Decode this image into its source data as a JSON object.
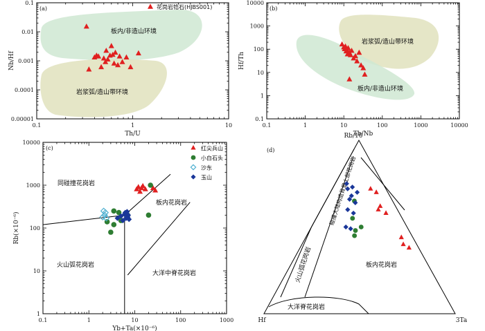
{
  "chart_data": [
    {
      "panel_label": "(a)",
      "type": "scatter",
      "xscale": "log",
      "yscale": "log",
      "xlim": [
        0.1,
        10
      ],
      "ylim": [
        1e-05,
        0.1
      ],
      "xlabel": "Th/U",
      "ylabel": "Nb/Hf",
      "xticks": [
        "0.1",
        "1",
        "10"
      ],
      "yticks": [
        "0.00001",
        "0.0001",
        "0.001",
        "0.01",
        "0.1"
      ],
      "legend": {
        "position": "top-right",
        "entries": [
          "花岗岩锆石(HJBS001)"
        ]
      },
      "fields": [
        {
          "label": "板内/非造山环境",
          "color": "#cfe8d2"
        },
        {
          "label": "岩浆弧/造山带环境",
          "color": "#e0e2bd"
        }
      ],
      "series": [
        {
          "name": "花岗岩锆石(HJBS001)",
          "color": "#e02020",
          "marker": "triangle",
          "points": [
            [
              0.33,
              0.015
            ],
            [
              0.35,
              0.0005
            ],
            [
              0.4,
              0.0013
            ],
            [
              0.42,
              0.0015
            ],
            [
              0.44,
              0.0014
            ],
            [
              0.47,
              0.0006
            ],
            [
              0.5,
              0.0012
            ],
            [
              0.52,
              0.0009
            ],
            [
              0.53,
              0.0022
            ],
            [
              0.55,
              0.0011
            ],
            [
              0.58,
              0.0015
            ],
            [
              0.6,
              0.0032
            ],
            [
              0.62,
              0.0016
            ],
            [
              0.64,
              0.0008
            ],
            [
              0.66,
              0.0019
            ],
            [
              0.7,
              0.0007
            ],
            [
              0.73,
              0.0014
            ],
            [
              0.78,
              0.0009
            ],
            [
              0.86,
              0.0013
            ],
            [
              0.95,
              0.0006
            ],
            [
              1.15,
              0.0018
            ]
          ]
        }
      ]
    },
    {
      "panel_label": "(b)",
      "type": "scatter",
      "xscale": "log",
      "yscale": "log",
      "xlim": [
        0.1,
        10000
      ],
      "ylim": [
        0.1,
        10000
      ],
      "xlabel": "Th/Nb",
      "ylabel": "Hf/Th",
      "xticks": [
        "0.1",
        "1",
        "10",
        "100",
        "1000",
        "10000"
      ],
      "yticks": [
        "0.1",
        "1",
        "10",
        "100",
        "1000",
        "10000"
      ],
      "fields": [
        {
          "label": "岩浆弧/造山带环境",
          "color": "#e0e2bd"
        },
        {
          "label": "板内/非造山环境",
          "color": "#cfe8d2"
        }
      ],
      "series": [
        {
          "name": "花岗岩锆石(HJBS001)",
          "color": "#e02020",
          "marker": "triangle",
          "points": [
            [
              9,
              160
            ],
            [
              10,
              120
            ],
            [
              10.5,
              100
            ],
            [
              11,
              130
            ],
            [
              11.5,
              80
            ],
            [
              12,
              90
            ],
            [
              12.5,
              60
            ],
            [
              13,
              110
            ],
            [
              14,
              70
            ],
            [
              15,
              55
            ],
            [
              16,
              85
            ],
            [
              18,
              40
            ],
            [
              20,
              50
            ],
            [
              22,
              30
            ],
            [
              25,
              70
            ],
            [
              28,
              20
            ],
            [
              32,
              15
            ],
            [
              35,
              8
            ],
            [
              14,
              5
            ]
          ]
        }
      ]
    },
    {
      "panel_label": "(c)",
      "type": "scatter",
      "xscale": "log",
      "yscale": "log",
      "xlim": [
        0.1,
        1000
      ],
      "ylim": [
        1,
        10000
      ],
      "xlabel": "Yb+Ta(×10⁻⁶)",
      "ylabel": "Rb(×10⁻⁶)",
      "xticks": [
        "0.1",
        "1",
        "10",
        "100",
        "1000"
      ],
      "yticks": [
        "1",
        "10",
        "100",
        "1000",
        "10000"
      ],
      "legend": {
        "position": "top-right",
        "entries": [
          "红尖兵山",
          "小白石头",
          "沙东",
          "玉山"
        ]
      },
      "field_labels": [
        "同碰撞花岗岩",
        "板内花岗岩",
        "火山弧花岗岩",
        "大洋中脊花岗岩"
      ],
      "series": [
        {
          "name": "红尖兵山",
          "color": "#e02020",
          "marker": "triangle",
          "points": [
            [
              11,
              800
            ],
            [
              12,
              900
            ],
            [
              13,
              700
            ],
            [
              14,
              850
            ],
            [
              15,
              950
            ],
            [
              17,
              800
            ],
            [
              25,
              850
            ],
            [
              28,
              750
            ]
          ]
        },
        {
          "name": "小白石头",
          "color": "#2e7d32",
          "marker": "circle",
          "points": [
            [
              2.5,
              140
            ],
            [
              3,
              80
            ],
            [
              3.5,
              250
            ],
            [
              3.5,
              120
            ],
            [
              4.5,
              230
            ],
            [
              5,
              150
            ],
            [
              7,
              200
            ],
            [
              20,
              200
            ],
            [
              22,
              1000
            ]
          ]
        },
        {
          "name": "沙东",
          "color": "#4fb0d0",
          "marker": "diamond-open",
          "points": [
            [
              2,
              180
            ],
            [
              2.1,
              250
            ],
            [
              2.2,
              200
            ],
            [
              2.3,
              230
            ],
            [
              2.4,
              170
            ]
          ]
        },
        {
          "name": "玉山",
          "color": "#1a3799",
          "marker": "diamond",
          "points": [
            [
              4.2,
              170
            ],
            [
              5,
              190
            ],
            [
              5.5,
              150
            ],
            [
              6,
              210
            ],
            [
              6.2,
              230
            ],
            [
              6.5,
              170
            ],
            [
              6.8,
              240
            ],
            [
              7,
              180
            ],
            [
              7.2,
              200
            ],
            [
              7.5,
              160
            ]
          ]
        }
      ]
    },
    {
      "panel_label": "(d)",
      "type": "scatter",
      "projection": "ternary",
      "vertices": [
        "Rb/10",
        "Hf",
        "3Ta"
      ],
      "field_labels": [
        "碰撞大陆构造背景上部花岗岩",
        "火山弧花岗岩",
        "板内花岗岩",
        "大洋脊花岗岩"
      ],
      "series": [
        {
          "name": "红尖兵山",
          "color": "#e02020",
          "marker": "triangle",
          "points": [
            [
              0.72,
              0.08,
              0.2
            ],
            [
              0.7,
              0.06,
              0.24
            ],
            [
              0.62,
              0.08,
              0.3
            ],
            [
              0.58,
              0.07,
              0.35
            ],
            [
              0.6,
              0.1,
              0.3
            ],
            [
              0.44,
              0.06,
              0.5
            ],
            [
              0.4,
              0.07,
              0.53
            ],
            [
              0.38,
              0.05,
              0.57
            ]
          ]
        },
        {
          "name": "小白石头",
          "color": "#2e7d32",
          "marker": "circle",
          "points": [
            [
              0.65,
              0.2,
              0.15
            ],
            [
              0.55,
              0.26,
              0.19
            ],
            [
              0.5,
              0.24,
              0.26
            ],
            [
              0.45,
              0.3,
              0.25
            ],
            [
              0.48,
              0.28,
              0.24
            ]
          ]
        },
        {
          "name": "玉山",
          "color": "#1a3799",
          "marker": "diamond",
          "points": [
            [
              0.75,
              0.19,
              0.06
            ],
            [
              0.73,
              0.17,
              0.1
            ],
            [
              0.72,
              0.2,
              0.08
            ],
            [
              0.7,
              0.16,
              0.14
            ],
            [
              0.68,
              0.2,
              0.12
            ],
            [
              0.66,
              0.22,
              0.12
            ],
            [
              0.64,
              0.2,
              0.16
            ],
            [
              0.6,
              0.26,
              0.14
            ],
            [
              0.58,
              0.24,
              0.18
            ],
            [
              0.5,
              0.32,
              0.18
            ],
            [
              0.49,
              0.3,
              0.21
            ]
          ]
        }
      ]
    }
  ]
}
